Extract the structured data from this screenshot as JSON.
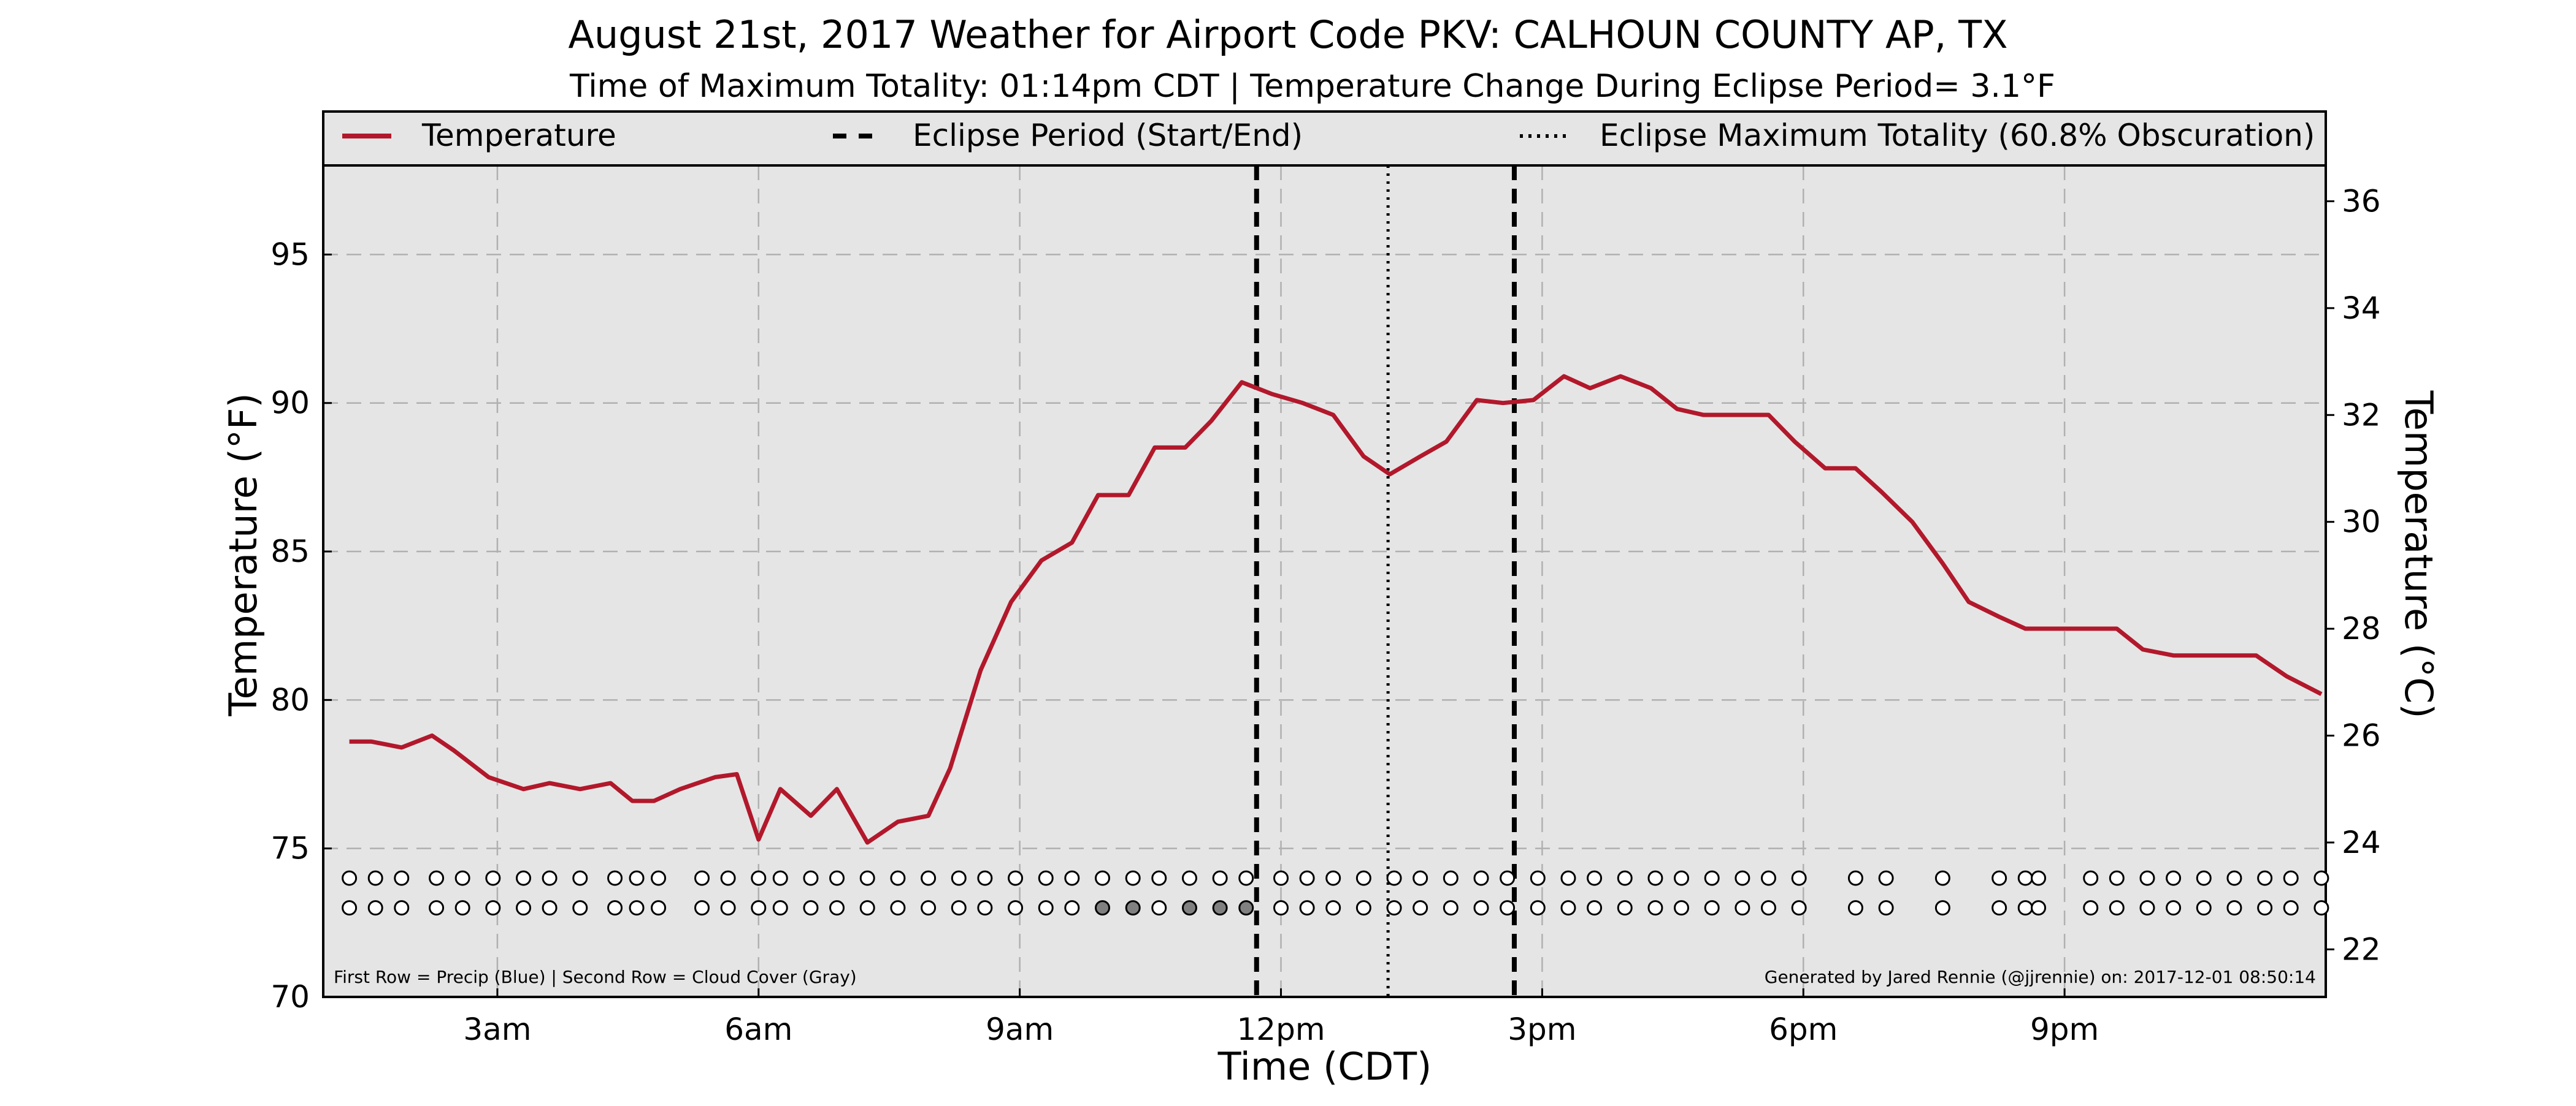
{
  "chart_data": {
    "type": "line",
    "title": "August 21st, 2017 Weather for Airport Code PKV: CALHOUN COUNTY AP, TX",
    "subtitle": "Time of Maximum Totality: 01:14pm CDT | Temperature Change During Eclipse Period= 3.1°F",
    "xlabel": "Time (CDT)",
    "ylabel": "Temperature (°F)",
    "ylabel_right": "Temperature (°C)",
    "xlim": [
      1.0,
      24.0
    ],
    "ylim": [
      70,
      98
    ],
    "ylim_right": [
      21.11,
      36.67
    ],
    "x_ticks": [
      {
        "x": 3,
        "label": "3am"
      },
      {
        "x": 6,
        "label": "6am"
      },
      {
        "x": 9,
        "label": "9am"
      },
      {
        "x": 12,
        "label": "12pm"
      },
      {
        "x": 15,
        "label": "3pm"
      },
      {
        "x": 18,
        "label": "6pm"
      },
      {
        "x": 21,
        "label": "9pm"
      }
    ],
    "y_ticks": [
      70,
      75,
      80,
      85,
      90,
      95
    ],
    "y_ticks_right": [
      22,
      24,
      26,
      28,
      30,
      32,
      34,
      36
    ],
    "grid": true,
    "legend_position": "top",
    "legend": [
      {
        "label": "Temperature",
        "style": "solid",
        "color": "#b2182b"
      },
      {
        "label": "Eclipse Period (Start/End)",
        "style": "dashed",
        "color": "#000000"
      },
      {
        "label": "Eclipse Maximum Totality (60.8% Obscuration)",
        "style": "dotted",
        "color": "#000000"
      }
    ],
    "eclipse_start": 11.72,
    "eclipse_max": 13.23,
    "eclipse_end": 14.68,
    "series": [
      {
        "name": "Temperature",
        "color": "#b2182b",
        "x": [
          1.3,
          1.55,
          1.9,
          2.25,
          2.5,
          2.9,
          3.3,
          3.6,
          3.95,
          4.3,
          4.55,
          4.8,
          5.1,
          5.5,
          5.75,
          6.0,
          6.25,
          6.6,
          6.9,
          7.25,
          7.6,
          7.95,
          8.2,
          8.55,
          8.9,
          9.25,
          9.6,
          9.9,
          10.25,
          10.55,
          10.9,
          11.2,
          11.55,
          11.9,
          12.25,
          12.6,
          12.95,
          13.25,
          13.6,
          13.9,
          14.25,
          14.55,
          14.9,
          15.25,
          15.55,
          15.9,
          16.25,
          16.55,
          16.85,
          17.25,
          17.6,
          17.9,
          18.25,
          18.6,
          18.9,
          19.25,
          19.6,
          19.9,
          20.25,
          20.55,
          20.9,
          21.25,
          21.6,
          21.9,
          22.25,
          22.55,
          22.85,
          23.2,
          23.55,
          23.95
        ],
        "values": [
          78.6,
          78.6,
          78.4,
          78.8,
          78.3,
          77.4,
          77.0,
          77.2,
          77.0,
          77.2,
          76.6,
          76.6,
          77.0,
          77.4,
          77.5,
          75.3,
          77.0,
          76.1,
          77.0,
          75.2,
          75.9,
          76.1,
          77.7,
          81.0,
          83.3,
          84.7,
          85.3,
          86.9,
          86.9,
          88.5,
          88.5,
          89.4,
          90.7,
          90.3,
          90.0,
          89.6,
          88.2,
          87.6,
          88.2,
          88.7,
          90.1,
          90.0,
          90.1,
          90.9,
          90.5,
          90.9,
          90.5,
          89.8,
          89.6,
          89.6,
          89.6,
          88.7,
          87.8,
          87.8,
          87.0,
          86.0,
          84.6,
          83.3,
          82.8,
          82.4,
          82.4,
          82.4,
          82.4,
          81.7,
          81.5,
          81.5,
          81.5,
          81.5,
          80.8,
          80.2
        ]
      }
    ],
    "observation_rows": {
      "row1_y": 74.0,
      "row2_y": 73.0,
      "x": [
        1.3,
        1.6,
        1.9,
        2.3,
        2.6,
        2.95,
        3.3,
        3.6,
        3.95,
        4.35,
        4.6,
        4.85,
        5.35,
        5.65,
        6.0,
        6.25,
        6.6,
        6.9,
        7.25,
        7.6,
        7.95,
        8.3,
        8.6,
        8.95,
        9.3,
        9.6,
        9.95,
        10.3,
        10.6,
        10.95,
        11.3,
        11.6,
        12.0,
        12.3,
        12.6,
        12.95,
        13.3,
        13.6,
        13.95,
        14.3,
        14.6,
        14.95,
        15.3,
        15.6,
        15.95,
        16.3,
        16.6,
        16.95,
        17.3,
        17.6,
        17.95,
        18.6,
        18.95,
        19.6,
        20.25,
        20.55,
        20.7,
        21.3,
        21.6,
        21.95,
        22.25,
        22.6,
        22.95,
        23.3,
        23.6,
        23.95
      ],
      "cloud_filled_x": [
        9.95,
        10.3,
        10.95,
        11.3,
        11.6
      ]
    },
    "notes": {
      "left": "First Row = Precip (Blue) | Second Row = Cloud Cover (Gray)",
      "right": "Generated by Jared Rennie (@jjrennie) on: 2017-12-01 08:50:14"
    },
    "colors": {
      "plot_background": "#e5e5e5",
      "temperature_line": "#b2182b",
      "grid": "#b0b0b0",
      "marker_fill_empty": "#ffffff",
      "marker_fill_cloud": "#808080"
    }
  }
}
